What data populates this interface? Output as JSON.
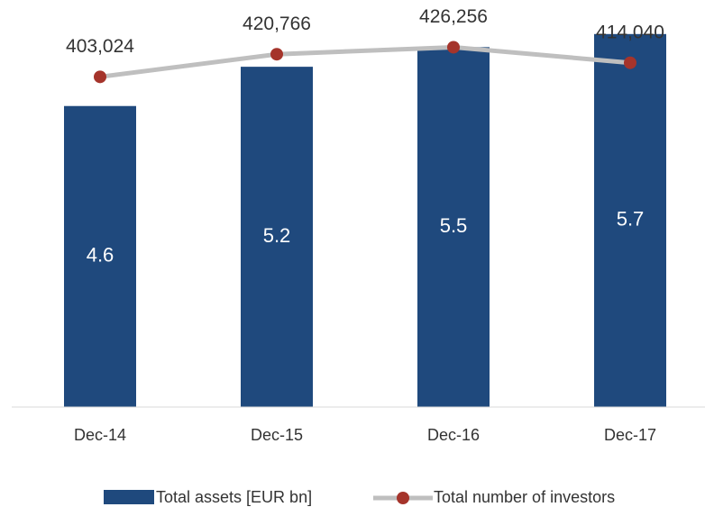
{
  "chart_data": {
    "type": "bar-line",
    "categories": [
      "Dec-14",
      "Dec-15",
      "Dec-16",
      "Dec-17"
    ],
    "series": [
      {
        "name": "Total assets [EUR bn]",
        "type": "bar",
        "color": "#1f497d",
        "values": [
          4.6,
          5.2,
          5.5,
          5.7
        ]
      },
      {
        "name": "Total number of investors",
        "type": "line",
        "axis": "y2",
        "color": "#bfbfbf",
        "marker_color": "#a5342b",
        "values": [
          403024,
          420766,
          426256,
          414040
        ],
        "value_labels": [
          "403,024",
          "420,766",
          "426,256",
          "414,040"
        ]
      }
    ],
    "ylim": [
      0,
      6
    ],
    "y2lim": [
      144000,
      452000
    ],
    "legend": "bottom"
  }
}
